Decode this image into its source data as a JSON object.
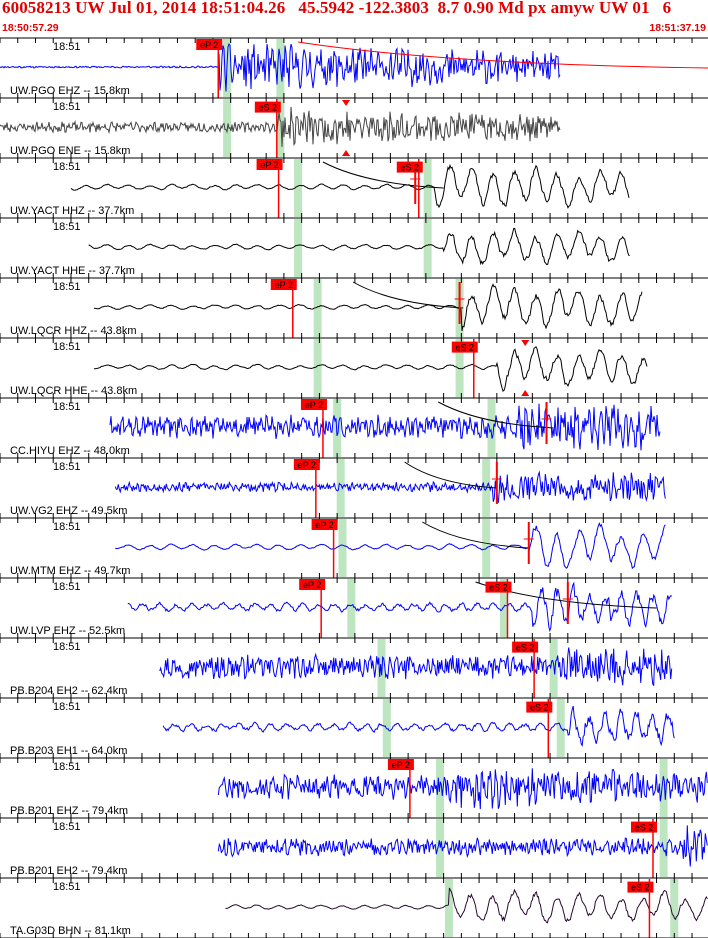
{
  "header": {
    "title": "60058213 UW Jul 01, 2014 18:51:04.26   45.5942 -122.3803  8.7 0.90 Md px amyw UW 01   6",
    "start_time": "18:50:57.29",
    "end_time": "18:51:37.19"
  },
  "colors": {
    "header_text": "#e00000",
    "pick_box": "#ff0000",
    "gap_band": "#bde6c0",
    "decay_curve": "#ff0000",
    "trace_blue": "#0000ff",
    "trace_black": "#000000",
    "trace_gray": "#444444",
    "trace_purple": "#2a0a30",
    "background": "#ffffff",
    "separator": "#000000"
  },
  "chart_data": {
    "type": "seismogram",
    "time_start_s": 0,
    "time_end_s": 39.9,
    "tick_interval_s": 1,
    "traces": [
      {
        "label": "UW.PGO EHZ -- 15.8km",
        "time_label": "18:51",
        "color": "#0000ff",
        "data_start": 0,
        "data_end": 31.6,
        "onset": 12.3,
        "amp": 0.78,
        "noise": 0.04,
        "style": "hf",
        "seed": 11,
        "picks": [
          {
            "label": "eP 2",
            "t": 12.3
          }
        ],
        "green": [
          12.8,
          15.8
        ],
        "decay": [
          16.8,
          39.9
        ],
        "pulse": null,
        "red_mark": null
      },
      {
        "label": "UW.PGO ENE -- 15.8km",
        "time_label": "18:51",
        "color": "#444444",
        "data_start": 0,
        "data_end": 31.6,
        "onset": 15.6,
        "amp": 0.62,
        "noise": 0.28,
        "style": "hf",
        "seed": 23,
        "picks": [
          {
            "label": "eS 2",
            "t": 15.6
          }
        ],
        "green": [
          12.8,
          15.8
        ],
        "decay": null,
        "pulse": null,
        "red_mark": 19.5
      },
      {
        "label": "UW.YACT HHZ -- 37.7km",
        "time_label": "18:51",
        "color": "#000000",
        "data_start": 4.0,
        "data_end": 35.5,
        "onset": 24.5,
        "amp": 0.75,
        "noise": 0.12,
        "style": "lf",
        "seed": 37,
        "picks": [
          {
            "label": "eP 2",
            "t": 15.7
          },
          {
            "label": "eS 2",
            "t": 23.6
          }
        ],
        "green": [
          16.8,
          24.1
        ],
        "decay": [
          18.2,
          25.0
        ],
        "pulse": 23.4,
        "red_mark": null
      },
      {
        "label": "UW.YACT HHE -- 37.7km",
        "time_label": "18:51",
        "color": "#000000",
        "data_start": 5.0,
        "data_end": 35.5,
        "onset": 25.0,
        "amp": 0.62,
        "noise": 0.14,
        "style": "lf",
        "seed": 41,
        "picks": [],
        "green": [
          16.8,
          24.1
        ],
        "decay": null,
        "pulse": null,
        "red_mark": null
      },
      {
        "label": "UW.LQCR HHZ -- 43.8km",
        "time_label": "18:51",
        "color": "#000000",
        "data_start": 5.3,
        "data_end": 36.2,
        "onset": 26.0,
        "amp": 0.75,
        "noise": 0.1,
        "style": "lf",
        "seed": 53,
        "picks": [
          {
            "label": "eP 2",
            "t": 16.5
          }
        ],
        "green": [
          17.9,
          25.9
        ],
        "decay": [
          19.9,
          26.1
        ],
        "pulse": 25.9,
        "red_mark": null
      },
      {
        "label": "UW.LQCR HHE -- 43.8km",
        "time_label": "18:51",
        "color": "#000000",
        "data_start": 5.3,
        "data_end": 36.5,
        "onset": 28.0,
        "amp": 0.68,
        "noise": 0.12,
        "style": "lf",
        "seed": 59,
        "picks": [
          {
            "label": "eS 2",
            "t": 26.7
          }
        ],
        "green": [
          17.9,
          25.9
        ],
        "decay": null,
        "pulse": null,
        "red_mark": 29.6
      },
      {
        "label": "CC.HIYU EHZ -- 48.0km",
        "time_label": "18:51",
        "color": "#0000ff",
        "data_start": 6.2,
        "data_end": 37.2,
        "onset": 29.0,
        "amp": 0.85,
        "noise": 0.45,
        "style": "hf",
        "seed": 61,
        "picks": [
          {
            "label": "eP 2",
            "t": 18.2
          }
        ],
        "green": [
          19.0,
          27.7
        ],
        "decay": [
          24.7,
          31.2
        ],
        "pulse": 30.8,
        "red_mark": null
      },
      {
        "label": "UW.VG2 EHZ -- 49.5km",
        "time_label": "18:51",
        "color": "#0000ff",
        "data_start": 6.5,
        "data_end": 37.5,
        "onset": 27.8,
        "amp": 0.55,
        "noise": 0.28,
        "style": "hf",
        "seed": 67,
        "picks": [
          {
            "label": "eP 2",
            "t": 17.8
          }
        ],
        "green": [
          19.2,
          27.4
        ],
        "decay": [
          22.8,
          28.0
        ],
        "pulse": 28.0,
        "red_mark": null
      },
      {
        "label": "UW.MTM EHZ -- 49.7km",
        "time_label": "18:51",
        "color": "#0000ff",
        "data_start": 6.5,
        "data_end": 37.5,
        "onset": 29.8,
        "amp": 0.78,
        "noise": 0.12,
        "style": "lf",
        "seed": 71,
        "picks": [
          {
            "label": "eP 2",
            "t": 18.8
          }
        ],
        "green": [
          19.3,
          27.4
        ],
        "decay": [
          23.8,
          29.8
        ],
        "pulse": 29.8,
        "red_mark": null
      },
      {
        "label": "UW.LVP EHZ -- 52.5km",
        "time_label": "18:51",
        "color": "#0000ff",
        "data_start": 7.2,
        "data_end": 37.9,
        "onset": 30.0,
        "amp": 0.82,
        "noise": 0.22,
        "style": "mix",
        "seed": 83,
        "picks": [
          {
            "label": "eP 2",
            "t": 18.1
          },
          {
            "label": "eS 2",
            "t": 28.6
          }
        ],
        "green": [
          19.8,
          28.4
        ],
        "decay": [
          26.8,
          37.0
        ],
        "pulse": 32.0,
        "red_mark": null
      },
      {
        "label": "PB.B204 EH2 -- 62.4km",
        "time_label": "18:51",
        "color": "#0000ff",
        "data_start": 9.0,
        "data_end": 37.9,
        "onset": 31.7,
        "amp": 0.7,
        "noise": 0.55,
        "style": "hf",
        "seed": 97,
        "picks": [
          {
            "label": "eS 2",
            "t": 30.1
          }
        ],
        "green": [
          21.5,
          31.2
        ],
        "decay": null,
        "pulse": null,
        "red_mark": null
      },
      {
        "label": "PB.B203 EH1 -- 64.0km",
        "time_label": "18:51",
        "color": "#0000ff",
        "data_start": 9.2,
        "data_end": 38.0,
        "onset": 32.0,
        "amp": 0.72,
        "noise": 0.25,
        "style": "mix",
        "seed": 101,
        "picks": [
          {
            "label": "eS 2",
            "t": 30.9
          }
        ],
        "green": [
          21.8,
          31.6
        ],
        "decay": null,
        "pulse": null,
        "red_mark": null
      },
      {
        "label": "PB.B201 EHZ -- 79.4km",
        "time_label": "18:51",
        "color": "#0000ff",
        "data_start": 12.3,
        "data_end": 39.9,
        "onset": 24.8,
        "amp": 0.72,
        "noise": 0.55,
        "style": "hf",
        "seed": 107,
        "picks": [
          {
            "label": "eP 2",
            "t": 23.1
          }
        ],
        "green": [
          24.8,
          37.4
        ],
        "decay": null,
        "pulse": null,
        "red_mark": null
      },
      {
        "label": "PB.B201 EH2 -- 79.4km",
        "time_label": "18:51",
        "color": "#0000ff",
        "data_start": 12.3,
        "data_end": 39.9,
        "onset": 38.5,
        "amp": 0.72,
        "noise": 0.4,
        "style": "hf",
        "seed": 113,
        "picks": [
          {
            "label": "eS 2",
            "t": 36.8
          }
        ],
        "green": [
          24.8,
          37.4
        ],
        "decay": null,
        "pulse": null,
        "red_mark": null
      },
      {
        "label": "TA.G03D BHN -- 81.1km",
        "time_label": "18:51",
        "color": "#2a0a30",
        "data_start": 12.7,
        "data_end": 39.9,
        "onset": 25.3,
        "amp": 0.6,
        "noise": 0.12,
        "style": "lf",
        "seed": 127,
        "picks": [
          {
            "label": "eS 2",
            "t": 36.6
          }
        ],
        "green": [
          25.3,
          38.0
        ],
        "decay": null,
        "pulse": null,
        "red_mark": null
      }
    ]
  }
}
